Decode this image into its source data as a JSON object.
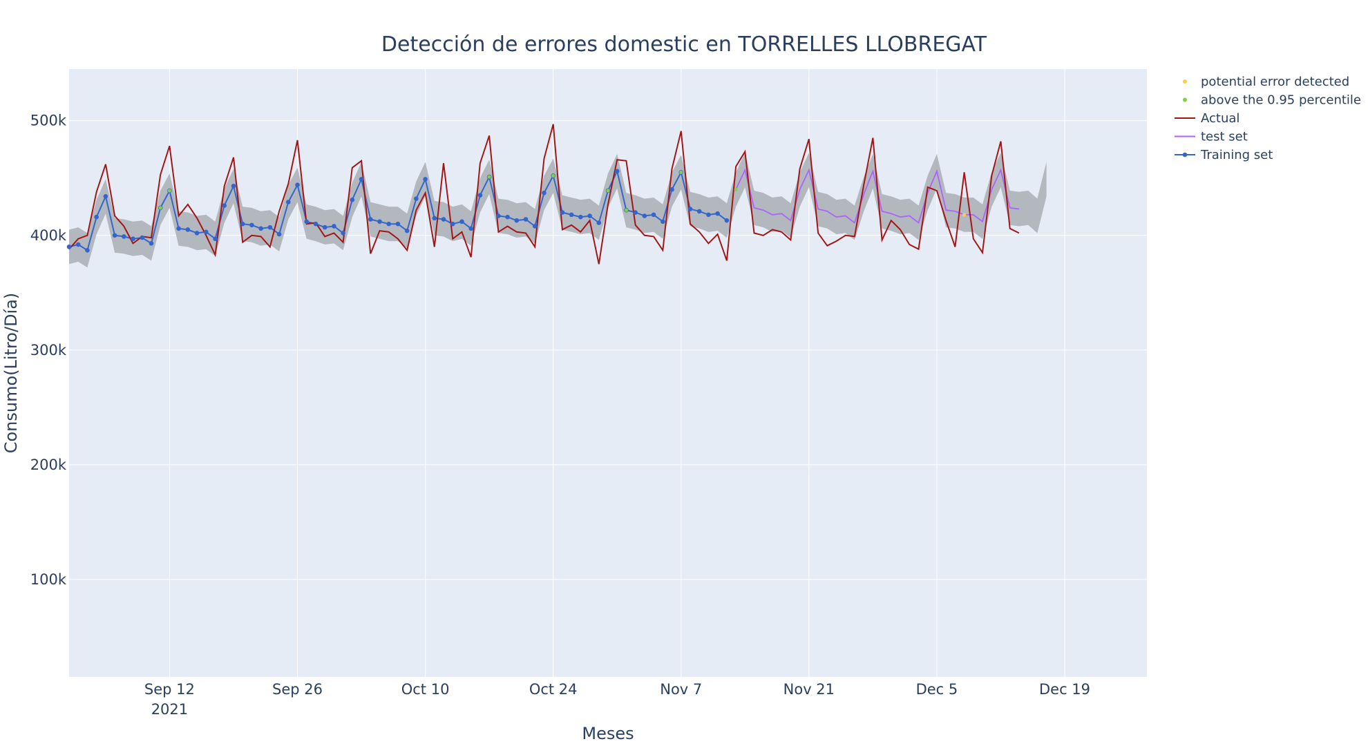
{
  "chart_data": {
    "type": "line",
    "title": "Detección de errores domestic en TORRELLES LLOBREGAT",
    "xlabel": "Meses",
    "ylabel": "Consumo(Litro/Día)",
    "x_range": [
      "2021-09-01",
      "2021-12-28"
    ],
    "ylim": [
      15000,
      545000
    ],
    "x_ticks": [
      {
        "date": "2021-09-12",
        "label": "Sep 12",
        "sublabel": "2021"
      },
      {
        "date": "2021-09-26",
        "label": "Sep 26",
        "sublabel": ""
      },
      {
        "date": "2021-10-10",
        "label": "Oct 10",
        "sublabel": ""
      },
      {
        "date": "2021-10-24",
        "label": "Oct 24",
        "sublabel": ""
      },
      {
        "date": "2021-11-07",
        "label": "Nov 7",
        "sublabel": ""
      },
      {
        "date": "2021-11-21",
        "label": "Nov 21",
        "sublabel": ""
      },
      {
        "date": "2021-12-05",
        "label": "Dec 5",
        "sublabel": ""
      },
      {
        "date": "2021-12-19",
        "label": "Dec 19",
        "sublabel": ""
      }
    ],
    "y_ticks": [
      {
        "value": 100000,
        "label": "100k"
      },
      {
        "value": 200000,
        "label": "200k"
      },
      {
        "value": 300000,
        "label": "300k"
      },
      {
        "value": 400000,
        "label": "400k"
      },
      {
        "value": 500000,
        "label": "500k"
      }
    ],
    "grid": true,
    "legend_position": "top-right",
    "start_date": "2021-09-01",
    "actual_values": [
      388000,
      397000,
      400000,
      438000,
      462000,
      417000,
      408000,
      393000,
      399000,
      398000,
      453000,
      478000,
      417000,
      427000,
      415000,
      400000,
      383000,
      443000,
      468000,
      394000,
      400000,
      399000,
      390000,
      421000,
      445000,
      483000,
      410000,
      411000,
      399000,
      402000,
      394000,
      459000,
      465000,
      384000,
      404000,
      403000,
      397000,
      387000,
      422000,
      437000,
      390000,
      463000,
      397000,
      403000,
      381000,
      463000,
      487000,
      403000,
      408000,
      403000,
      402000,
      390000,
      467000,
      497000,
      405000,
      409000,
      403000,
      413000,
      375000,
      427000,
      466000,
      465000,
      409000,
      400000,
      399000,
      387000,
      458000,
      491000,
      410000,
      403000,
      393000,
      401000,
      378000,
      460000,
      473000,
      402000,
      400000,
      405000,
      403000,
      396000,
      458000,
      484000,
      402000,
      391000,
      395000,
      400000,
      399000,
      444000,
      485000,
      396000,
      413000,
      405000,
      392000,
      388000,
      442000,
      439000,
      413000,
      390000,
      455000,
      397000,
      385000,
      452000,
      482000,
      406000,
      402000
    ],
    "training_values": [
      390000,
      392000,
      387000,
      416000,
      434000,
      400000,
      399000,
      397000,
      398000,
      393000,
      424000,
      439000,
      406000,
      405000,
      402000,
      403000,
      397000,
      426000,
      443000,
      410000,
      409000,
      406000,
      407000,
      401000,
      429000,
      444000,
      412000,
      410000,
      407000,
      408000,
      402000,
      431000,
      449000,
      414000,
      412000,
      410000,
      410000,
      404000,
      432000,
      449000,
      415000,
      414000,
      410000,
      412000,
      406000,
      435000,
      451000,
      417000,
      416000,
      413000,
      414000,
      408000,
      437000,
      452000,
      420000,
      418000,
      416000,
      417000,
      411000,
      439000,
      456000,
      422000,
      420000,
      417000,
      418000,
      412000,
      440000,
      455000,
      423000,
      421000,
      418000,
      419000,
      413000
    ],
    "test_start_index": 73,
    "test_values": [
      440000,
      457000,
      424000,
      422000,
      418000,
      419000,
      413000,
      440000,
      457000,
      423000,
      421000,
      416000,
      417000,
      411000,
      436000,
      456000,
      421000,
      419000,
      416000,
      417000,
      411000,
      437000,
      456000,
      422000,
      421000,
      418000,
      418000,
      412000,
      440000,
      457000,
      424000,
      423000
    ],
    "band_half_width": 15000,
    "band_extra_end": [
      424000,
      417000,
      449000
    ],
    "above_percentile_indices": [
      10,
      11,
      46,
      53,
      59,
      61,
      67,
      73
    ],
    "potential_error_indices": [
      98
    ],
    "series": [
      {
        "name": "potential error detected",
        "color": "#fecb52",
        "kind": "marker"
      },
      {
        "name": "above the 0.95 percentile",
        "color": "#7fd14b",
        "kind": "marker"
      },
      {
        "name": "Actual",
        "color": "#a31515",
        "kind": "line"
      },
      {
        "name": "test set",
        "color": "#ab63fa",
        "kind": "line"
      },
      {
        "name": "Training set",
        "color": "#3366cc",
        "kind": "line-marker"
      }
    ],
    "colors": {
      "plot_bg": "#e5ecf6",
      "grid": "#ffffff",
      "band": "#b0b4bb",
      "text": "#2a3f5f"
    }
  }
}
